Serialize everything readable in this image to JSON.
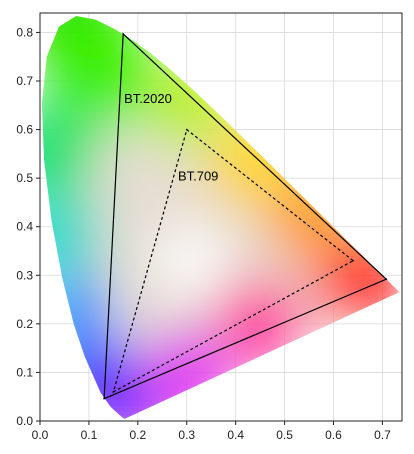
{
  "chart_data": {
    "type": "scatter",
    "title": "",
    "xlabel": "",
    "ylabel": "",
    "xlim": [
      0.0,
      0.74
    ],
    "ylim": [
      0.0,
      0.84
    ],
    "grid": true,
    "x_ticks": [
      "0.0",
      "0.1",
      "0.2",
      "0.3",
      "0.4",
      "0.5",
      "0.6",
      "0.7"
    ],
    "y_ticks": [
      "0.0",
      "0.1",
      "0.2",
      "0.3",
      "0.4",
      "0.5",
      "0.6",
      "0.7",
      "0.8"
    ],
    "spectral_locus": [
      [
        0.1741,
        0.005
      ],
      [
        0.1738,
        0.0049
      ],
      [
        0.1736,
        0.0049
      ],
      [
        0.1733,
        0.0048
      ],
      [
        0.1726,
        0.0048
      ],
      [
        0.1714,
        0.0051
      ],
      [
        0.1689,
        0.0069
      ],
      [
        0.1644,
        0.0109
      ],
      [
        0.1566,
        0.0177
      ],
      [
        0.144,
        0.0297
      ],
      [
        0.1241,
        0.0578
      ],
      [
        0.0913,
        0.1327
      ],
      [
        0.0687,
        0.2007
      ],
      [
        0.0454,
        0.295
      ],
      [
        0.0235,
        0.4127
      ],
      [
        0.0082,
        0.5384
      ],
      [
        0.0039,
        0.6548
      ],
      [
        0.0139,
        0.7502
      ],
      [
        0.0389,
        0.812
      ],
      [
        0.0743,
        0.8338
      ],
      [
        0.1142,
        0.8262
      ],
      [
        0.1547,
        0.8059
      ],
      [
        0.1929,
        0.7816
      ],
      [
        0.2296,
        0.7543
      ],
      [
        0.2658,
        0.7243
      ],
      [
        0.3016,
        0.6923
      ],
      [
        0.3373,
        0.6589
      ],
      [
        0.3731,
        0.6245
      ],
      [
        0.4087,
        0.5896
      ],
      [
        0.4441,
        0.5547
      ],
      [
        0.4788,
        0.5202
      ],
      [
        0.5125,
        0.4866
      ],
      [
        0.5448,
        0.4544
      ],
      [
        0.5752,
        0.4242
      ],
      [
        0.6029,
        0.3965
      ],
      [
        0.627,
        0.3725
      ],
      [
        0.6482,
        0.3514
      ],
      [
        0.6658,
        0.334
      ],
      [
        0.6801,
        0.3197
      ],
      [
        0.6915,
        0.3083
      ],
      [
        0.7006,
        0.2993
      ],
      [
        0.7079,
        0.292
      ],
      [
        0.714,
        0.2859
      ],
      [
        0.719,
        0.2809
      ],
      [
        0.723,
        0.277
      ],
      [
        0.726,
        0.274
      ],
      [
        0.7283,
        0.2717
      ],
      [
        0.73,
        0.27
      ],
      [
        0.7347,
        0.2653
      ]
    ],
    "series": [
      {
        "name": "BT.2020",
        "style": "solid",
        "x": [
          0.708,
          0.17,
          0.131
        ],
        "y": [
          0.292,
          0.797,
          0.046
        ]
      },
      {
        "name": "BT.709",
        "style": "dashed",
        "x": [
          0.64,
          0.3,
          0.15
        ],
        "y": [
          0.33,
          0.6,
          0.06
        ]
      }
    ],
    "annotations": [
      {
        "text": "BT.2020",
        "x": 0.172,
        "y": 0.655
      },
      {
        "text": "BT.709",
        "x": 0.282,
        "y": 0.495
      }
    ],
    "colors": {
      "axis": "#222222",
      "grid": "#d9d9d9",
      "gamut_line": "#000000"
    }
  }
}
